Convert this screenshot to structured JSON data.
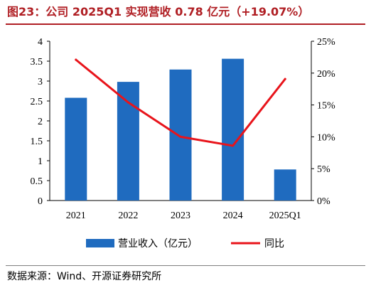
{
  "figure_title": "图23：公司 2025Q1 实现营收 0.78 亿元（+19.07%）",
  "source_note": "数据来源：Wind、开源证券研究所",
  "colors": {
    "title": "#b01f24",
    "bar": "#1f6bbf",
    "line": "#e8141b",
    "axis": "#000000"
  },
  "chart_data": {
    "type": "bar",
    "categories": [
      "2021",
      "2022",
      "2023",
      "2024",
      "2025Q1"
    ],
    "series": [
      {
        "name": "营业收入（亿元）",
        "type": "bar",
        "axis": "left",
        "values": [
          2.58,
          2.98,
          3.29,
          3.56,
          0.78
        ]
      },
      {
        "name": "同比",
        "type": "line",
        "axis": "right",
        "values": [
          22.1,
          15.4,
          10.0,
          8.6,
          19.07
        ]
      }
    ],
    "y_left": {
      "min": 0,
      "max": 4,
      "step": 0.5,
      "ticks": [
        "0",
        "0.5",
        "1",
        "1.5",
        "2",
        "2.5",
        "3",
        "3.5",
        "4"
      ]
    },
    "y_right": {
      "min": 0,
      "max": 25,
      "step": 5,
      "ticks": [
        "0%",
        "5%",
        "10%",
        "15%",
        "20%",
        "25%"
      ]
    },
    "legend": {
      "position": "bottom"
    },
    "grid": false
  }
}
